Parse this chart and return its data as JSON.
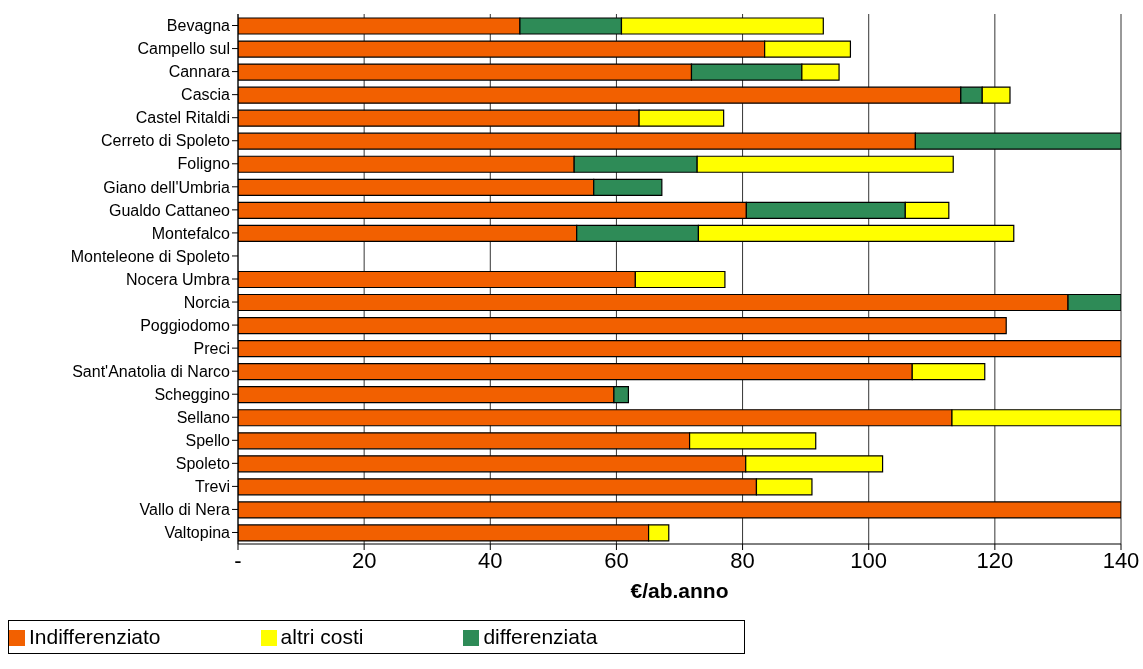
{
  "chart_data": {
    "type": "bar",
    "orientation": "horizontal",
    "stacked": true,
    "xlabel": "€/ab.anno",
    "categories": [
      "Bevagna",
      "Campello sul",
      "Cannara",
      "Cascia",
      "Castel Ritaldi",
      "Cerreto di Spoleto",
      "Foligno",
      "Giano dell'Umbria",
      "Gualdo Cattaneo",
      "Montefalco",
      "Monteleone di Spoleto",
      "Nocera Umbra",
      "Norcia",
      "Poggiodomo",
      "Preci",
      "Sant'Anatolia di Narco",
      "Scheggino",
      "Sellano",
      "Spello",
      "Spoleto",
      "Trevi",
      "Vallo di Nera",
      "Valtopina"
    ],
    "series": [
      {
        "name": "Indifferenziato",
        "color": "#f26000",
        "values": [
          44.7,
          83.5,
          71.9,
          114.6,
          63.6,
          107.4,
          53.3,
          56.4,
          80.6,
          53.7,
          0,
          63,
          131.6,
          121.8,
          140,
          106.9,
          59.6,
          113.2,
          71.6,
          80.5,
          82.2,
          140,
          65.1
        ]
      },
      {
        "name": "differenziata",
        "color": "#2e8b57",
        "values": [
          16.1,
          0,
          17.5,
          3.4,
          0,
          32.6,
          19.5,
          10.8,
          25.2,
          19.3,
          0,
          0,
          8.4,
          0,
          0,
          0,
          2.3,
          0,
          0,
          0,
          0,
          0,
          0
        ]
      },
      {
        "name": "altri costi",
        "color": "#ffff00",
        "values": [
          32,
          13.6,
          5.9,
          4.4,
          13.4,
          0,
          40.6,
          0,
          6.9,
          50,
          0,
          14.2,
          0,
          0,
          0,
          11.5,
          0,
          26.8,
          20,
          21.7,
          8.8,
          0,
          3.2
        ]
      }
    ],
    "xlim": [
      0,
      140
    ],
    "xticks": [
      {
        "value": 0,
        "label": "-"
      },
      20,
      40,
      60,
      80,
      100,
      120,
      140
    ],
    "grid": "x",
    "legend": "bottom left"
  }
}
